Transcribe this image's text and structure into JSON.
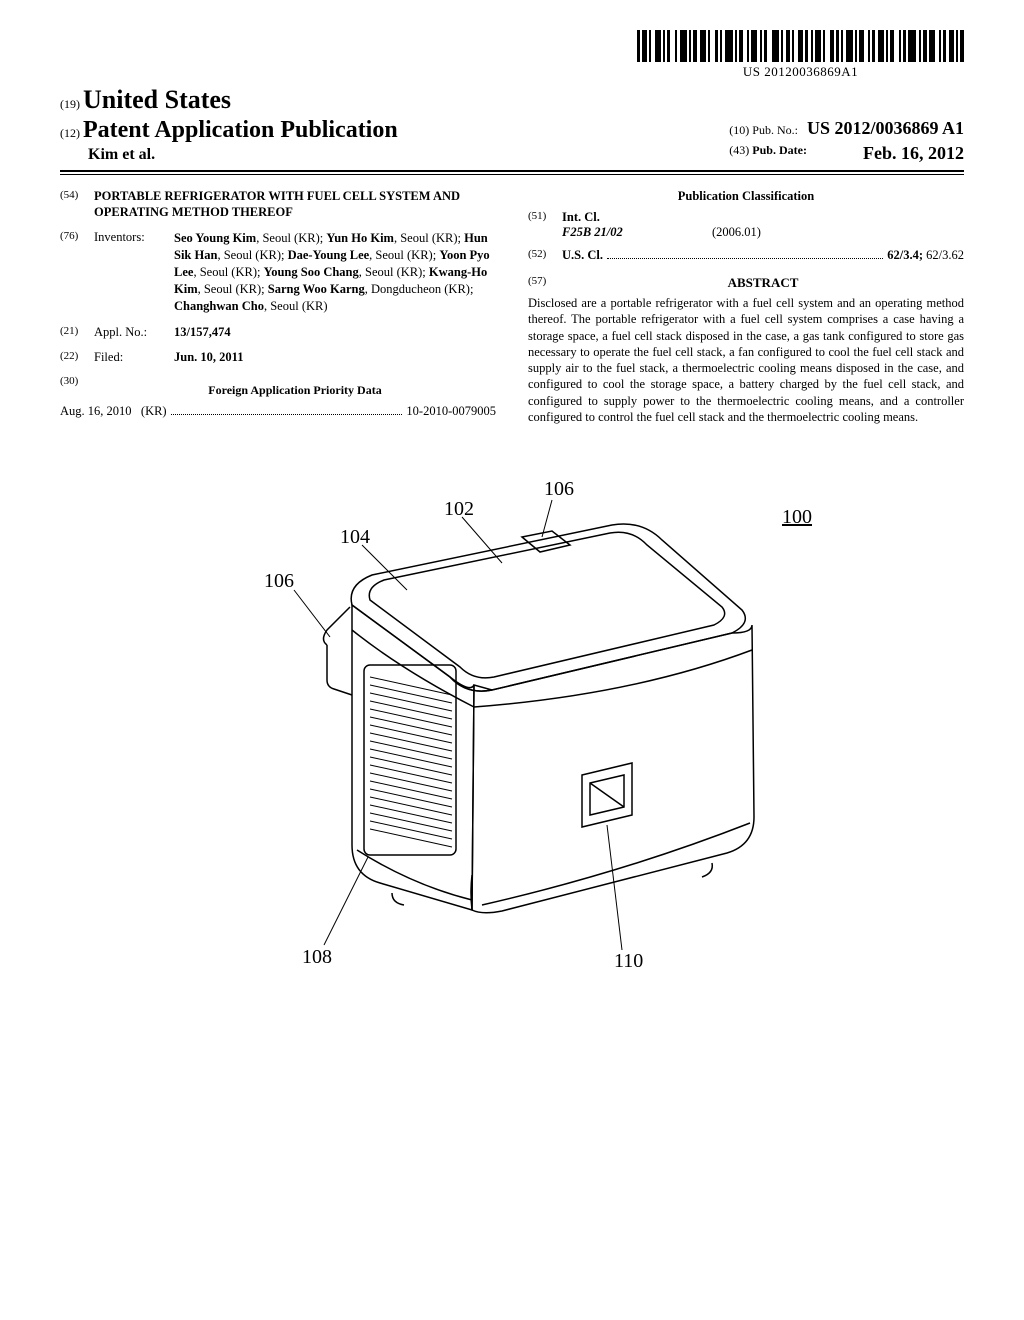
{
  "barcode_text": "US 20120036869A1",
  "header": {
    "left": {
      "country_code": "(19)",
      "country": "United States",
      "pub_code": "(12)",
      "pub_type": "Patent Application Publication",
      "authors_line": "Kim et al."
    },
    "right": {
      "pubno_code": "(10)",
      "pubno_label": "Pub. No.:",
      "pubno_value": "US 2012/0036869 A1",
      "pubdate_code": "(43)",
      "pubdate_label": "Pub. Date:",
      "pubdate_value": "Feb. 16, 2012"
    }
  },
  "title": {
    "code": "(54)",
    "text": "PORTABLE REFRIGERATOR WITH FUEL CELL SYSTEM AND OPERATING METHOD THEREOF"
  },
  "inventors": {
    "code": "(76)",
    "label": "Inventors:",
    "text_html": "<b>Seo Young Kim</b>, Seoul (KR); <b>Yun Ho Kim</b>, Seoul (KR); <b>Hun Sik Han</b>, Seoul (KR); <b>Dae-Young Lee</b>, Seoul (KR); <b>Yoon Pyo Lee</b>, Seoul (KR); <b>Young Soo Chang</b>, Seoul (KR); <b>Kwang-Ho Kim</b>, Seoul (KR); <b>Sarng Woo Karng</b>, Dongducheon (KR); <b>Changhwan Cho</b>, Seoul (KR)"
  },
  "appl": {
    "code": "(21)",
    "label": "Appl. No.:",
    "value": "13/157,474"
  },
  "filed": {
    "code": "(22)",
    "label": "Filed:",
    "value": "Jun. 10, 2011"
  },
  "foreign": {
    "code": "(30)",
    "heading": "Foreign Application Priority Data",
    "date": "Aug. 16, 2010",
    "country": "(KR)",
    "number": "10-2010-0079005"
  },
  "classification": {
    "heading": "Publication Classification",
    "intcl": {
      "code": "(51)",
      "label": "Int. Cl.",
      "class": "F25B 21/02",
      "edition": "(2006.01)"
    },
    "uscl": {
      "code": "(52)",
      "label": "U.S. Cl.",
      "primary": "62/3.4",
      "secondary": "62/3.62"
    }
  },
  "abstract": {
    "code": "(57)",
    "label": "ABSTRACT",
    "text": "Disclosed are a portable refrigerator with a fuel cell system and an operating method thereof. The portable refrigerator with a fuel cell system comprises a case having a storage space, a fuel cell stack disposed in the case, a gas tank configured to store gas necessary to operate the fuel cell stack, a fan configured to cool the fuel cell stack and supply air to the fuel stack, a thermoelectric cooling means disposed in the case, and configured to cool the storage space, a battery charged by the fuel cell stack, and configured to supply power to the thermoelectric cooling means, and a controller configured to control the fuel cell stack and the thermoelectric cooling means."
  },
  "figure": {
    "ref_main": "100",
    "callouts": [
      "102",
      "104",
      "106",
      "106",
      "108",
      "110"
    ]
  }
}
